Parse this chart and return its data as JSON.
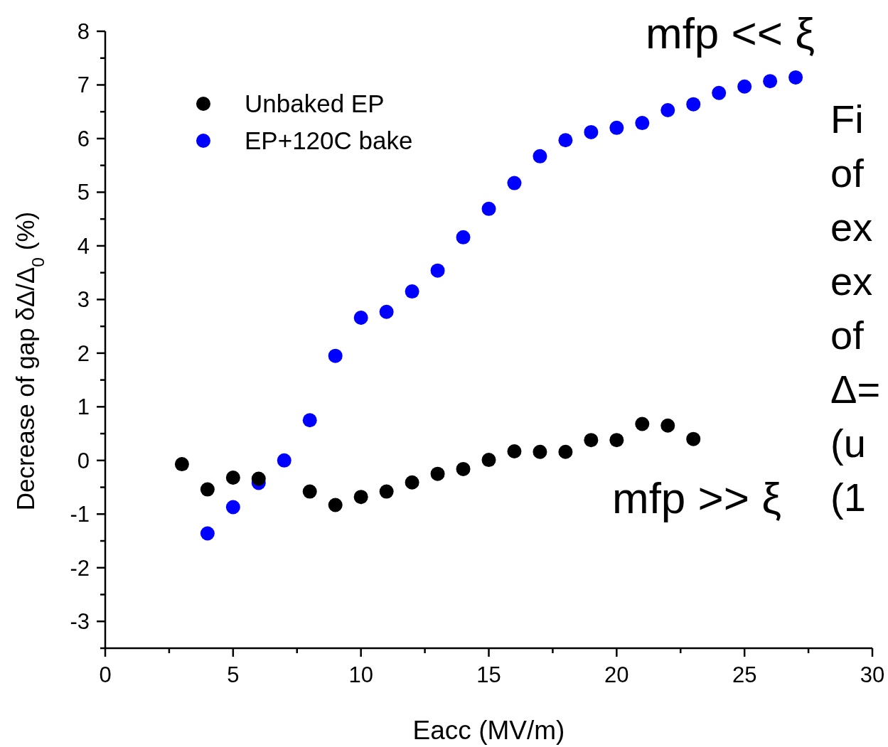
{
  "chart_data": {
    "type": "scatter",
    "xlabel": "Eacc (MV/m)",
    "ylabel": "Decrease of gap δΔ/Δ$_{0}$ (%)",
    "xlim": [
      0,
      30
    ],
    "ylim": [
      -3.5,
      8
    ],
    "xticks": [
      0,
      {
        "value": 2.5,
        "label": null
      },
      5,
      {
        "value": 7.5,
        "label": null
      },
      10,
      {
        "value": 12.5,
        "label": null
      },
      15,
      {
        "value": 17.5,
        "label": null
      },
      20,
      {
        "value": 22.5,
        "label": null
      },
      25,
      {
        "value": 27.5,
        "label": null
      },
      30
    ],
    "yticks": [
      {
        "value": -3.5,
        "label": null
      },
      -3,
      {
        "value": -2.5,
        "label": null
      },
      -2,
      {
        "value": -1.5,
        "label": null
      },
      -1,
      {
        "value": -0.5,
        "label": null
      },
      0,
      {
        "value": 0.5,
        "label": null
      },
      1,
      {
        "value": 1.5,
        "label": null
      },
      2,
      {
        "value": 2.5,
        "label": null
      },
      3,
      {
        "value": 3.5,
        "label": null
      },
      4,
      {
        "value": 4.5,
        "label": null
      },
      5,
      {
        "value": 5.5,
        "label": null
      },
      6,
      {
        "value": 6.5,
        "label": null
      },
      7,
      {
        "value": 7.5,
        "label": null
      },
      8
    ],
    "grid": false,
    "legend": "top left",
    "marker": "circle",
    "series": [
      {
        "name": "Unbaked EP",
        "color": "#000000",
        "x": [
          3,
          4,
          5,
          6,
          8,
          9,
          10,
          11,
          12,
          13,
          14,
          15,
          16,
          17,
          18,
          19,
          20,
          21,
          22,
          23
        ],
        "values": [
          -0.07,
          -0.54,
          -0.32,
          -0.34,
          -0.58,
          -0.83,
          -0.68,
          -0.58,
          -0.41,
          -0.25,
          -0.16,
          0.01,
          0.17,
          0.16,
          0.16,
          0.38,
          0.38,
          0.68,
          0.65,
          0.4
        ]
      },
      {
        "name": "EP+120C bake",
        "color": "#0000ff",
        "x": [
          4,
          5,
          6,
          7,
          8,
          9,
          10,
          11,
          12,
          13,
          14,
          15,
          16,
          17,
          18,
          19,
          20,
          21,
          22,
          23,
          24,
          25,
          26,
          27
        ],
        "values": [
          -1.36,
          -0.87,
          -0.42,
          0,
          0.75,
          1.95,
          2.66,
          2.77,
          3.15,
          3.54,
          4.16,
          4.69,
          5.17,
          5.67,
          5.97,
          6.12,
          6.2,
          6.29,
          6.53,
          6.64,
          6.85,
          6.97,
          7.07,
          7.14
        ]
      }
    ],
    "annotations": [
      "mfp << ξ",
      "mfp >> ξ",
      "Fi",
      "of",
      "ex",
      "ex",
      "of",
      "Δ=",
      "(u",
      "(1"
    ]
  }
}
